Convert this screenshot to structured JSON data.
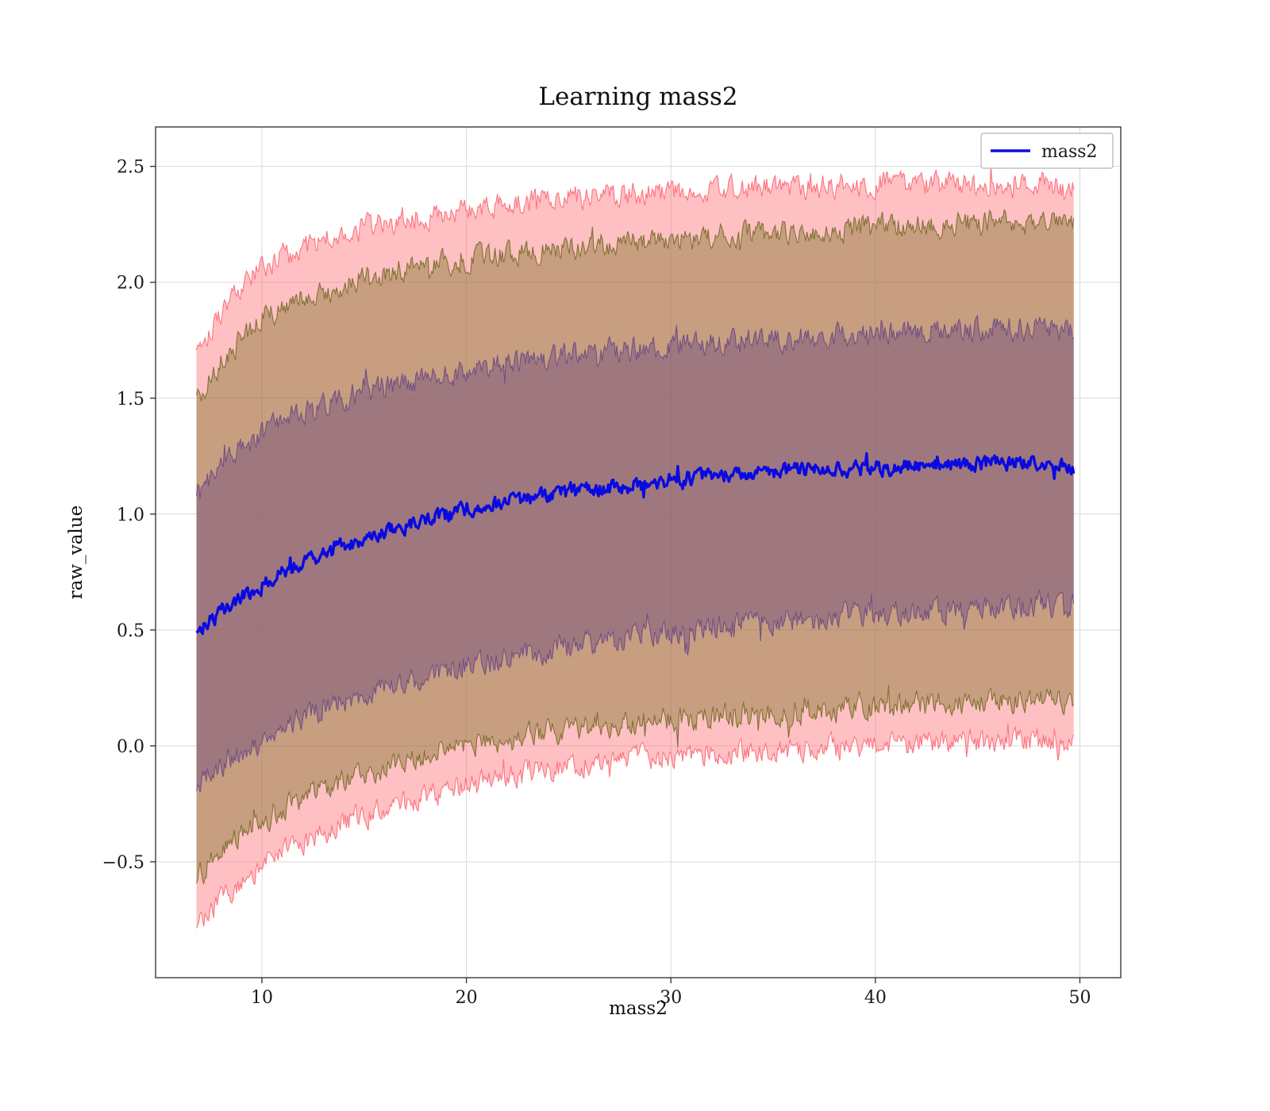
{
  "chart_data": {
    "type": "line",
    "title": "Learning mass2",
    "xlabel": "mass2",
    "ylabel": "raw_value",
    "xlim": [
      4.8,
      52.0
    ],
    "ylim": [
      -1.0,
      2.67
    ],
    "xticks": [
      10,
      20,
      30,
      40,
      50
    ],
    "yticks": [
      -0.5,
      0.0,
      0.5,
      1.0,
      1.5,
      2.0,
      2.5
    ],
    "grid": true,
    "legend_position": "upper right",
    "legend": [
      {
        "label": "mass2",
        "color": "#0a0ae0"
      }
    ],
    "x_data_range": [
      6.8,
      49.7
    ],
    "control_x": [
      7,
      8,
      9,
      10,
      12,
      14,
      16,
      18,
      20,
      22,
      25,
      28,
      31,
      34,
      37,
      40,
      43,
      46,
      48,
      50
    ],
    "mean": {
      "name": "mass2",
      "color": "#0a0ae0",
      "y": [
        0.5,
        0.58,
        0.64,
        0.7,
        0.79,
        0.86,
        0.92,
        0.97,
        1.02,
        1.05,
        1.09,
        1.12,
        1.16,
        1.18,
        1.19,
        1.2,
        1.21,
        1.22,
        1.22,
        1.2
      ]
    },
    "bands": [
      {
        "name": "outer-band",
        "fill": "rgba(255,105,115,0.42)",
        "edge": "rgba(252,110,120,0.95)",
        "upper": [
          1.74,
          1.88,
          1.98,
          2.06,
          2.15,
          2.21,
          2.26,
          2.29,
          2.32,
          2.34,
          2.36,
          2.38,
          2.39,
          2.41,
          2.41,
          2.43,
          2.42,
          2.42,
          2.43,
          2.4
        ],
        "lower": [
          -0.76,
          -0.66,
          -0.58,
          -0.51,
          -0.41,
          -0.33,
          -0.27,
          -0.22,
          -0.17,
          -0.14,
          -0.09,
          -0.06,
          -0.04,
          -0.02,
          -0.01,
          0.0,
          0.01,
          0.02,
          0.02,
          0.0
        ]
      },
      {
        "name": "middle-band",
        "fill": "rgba(122,112,34,0.42)",
        "edge": "rgba(118,108,40,0.9)",
        "upper": [
          1.52,
          1.66,
          1.76,
          1.84,
          1.93,
          1.99,
          2.04,
          2.07,
          2.1,
          2.12,
          2.15,
          2.17,
          2.19,
          2.21,
          2.22,
          2.24,
          2.25,
          2.26,
          2.26,
          2.25
        ],
        "lower": [
          -0.55,
          -0.46,
          -0.38,
          -0.32,
          -0.22,
          -0.15,
          -0.09,
          -0.04,
          0.0,
          0.03,
          0.07,
          0.1,
          0.12,
          0.14,
          0.15,
          0.17,
          0.18,
          0.19,
          0.2,
          0.18
        ]
      },
      {
        "name": "inner-band",
        "fill": "rgba(104,68,126,0.42)",
        "edge": "rgba(106,74,132,0.9)",
        "upper": [
          1.1,
          1.2,
          1.28,
          1.35,
          1.44,
          1.5,
          1.55,
          1.59,
          1.62,
          1.65,
          1.68,
          1.71,
          1.73,
          1.75,
          1.76,
          1.78,
          1.79,
          1.8,
          1.8,
          1.78
        ],
        "lower": [
          -0.15,
          -0.08,
          -0.02,
          0.03,
          0.12,
          0.19,
          0.25,
          0.3,
          0.34,
          0.38,
          0.43,
          0.47,
          0.5,
          0.53,
          0.55,
          0.57,
          0.58,
          0.6,
          0.61,
          0.6
        ]
      }
    ],
    "colors": {
      "grid": "#d9d9d9",
      "spine": "#2b2b2b",
      "tick_text": "#1a1a1a",
      "legend_border": "#b4b4b4",
      "background": "#ffffff"
    }
  }
}
